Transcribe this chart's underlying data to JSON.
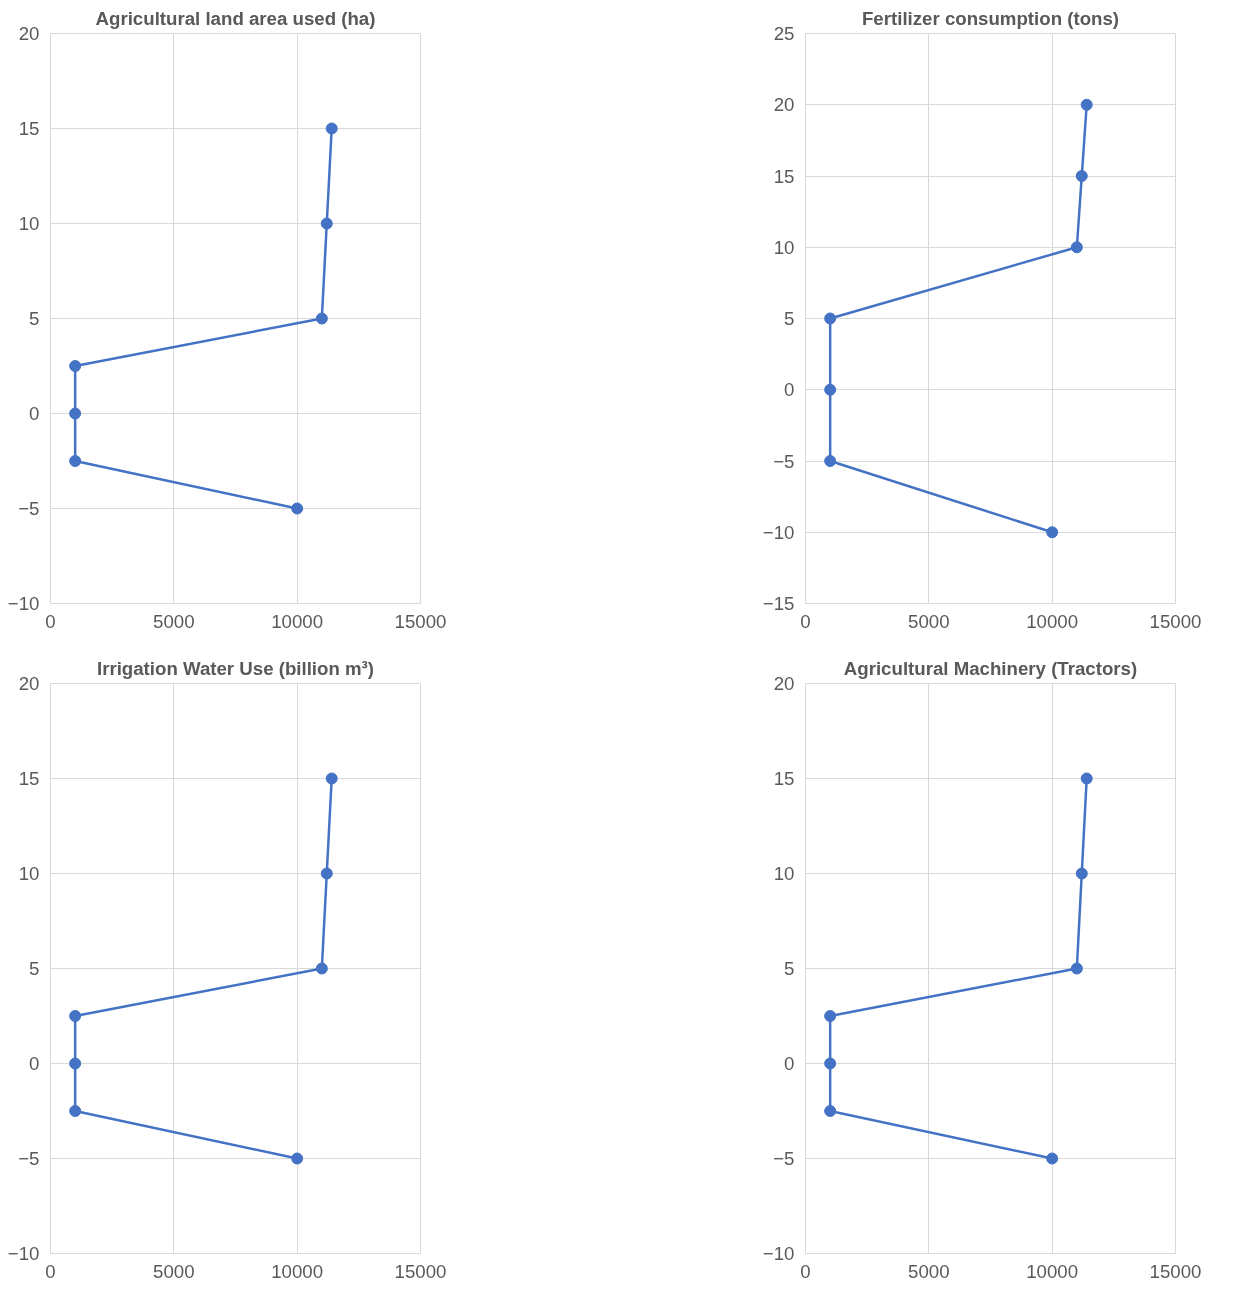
{
  "chart_data": [
    {
      "type": "line",
      "title": "Agricultural land area used (ha)",
      "xlim": [
        0,
        15000
      ],
      "xticks": [
        0,
        5000,
        10000,
        15000
      ],
      "ylim": [
        -10,
        20
      ],
      "yticks": [
        -10,
        -5,
        0,
        5,
        10,
        15,
        20
      ],
      "grid": true,
      "marker": "circle",
      "line_style": "solid",
      "series": [
        {
          "color": "#4472c4",
          "x": [
            11400,
            11200,
            11000,
            1000,
            1000,
            1000,
            10000
          ],
          "values": [
            15,
            10,
            5,
            2.5,
            0,
            -2.5,
            -5
          ]
        }
      ]
    },
    {
      "type": "line",
      "title": "Fertilizer consumption (tons)",
      "xlim": [
        0,
        15000
      ],
      "xticks": [
        0,
        5000,
        10000,
        15000
      ],
      "ylim": [
        -15,
        25
      ],
      "yticks": [
        -15,
        -10,
        -5,
        0,
        5,
        10,
        15,
        20,
        25
      ],
      "grid": true,
      "marker": "circle",
      "line_style": "solid",
      "series": [
        {
          "color": "#4472c4",
          "x": [
            11400,
            11200,
            11000,
            1000,
            1000,
            1000,
            10000
          ],
          "values": [
            20,
            15,
            10,
            5,
            0,
            -5,
            -10
          ]
        }
      ]
    },
    {
      "type": "line",
      "title": "Irrigation Water Use (billion m³)",
      "xlim": [
        0,
        15000
      ],
      "xticks": [
        0,
        5000,
        10000,
        15000
      ],
      "ylim": [
        -10,
        20
      ],
      "yticks": [
        -10,
        -5,
        0,
        5,
        10,
        15,
        20
      ],
      "grid": true,
      "marker": "circle",
      "line_style": "solid",
      "series": [
        {
          "color": "#4472c4",
          "x": [
            11400,
            11200,
            11000,
            1000,
            1000,
            1000,
            10000
          ],
          "values": [
            15,
            10,
            5,
            2.5,
            0,
            -2.5,
            -5
          ]
        }
      ]
    },
    {
      "type": "line",
      "title": "Agricultural Machinery (Tractors)",
      "xlim": [
        0,
        15000
      ],
      "xticks": [
        0,
        5000,
        10000,
        15000
      ],
      "ylim": [
        -10,
        20
      ],
      "yticks": [
        -10,
        -5,
        0,
        5,
        10,
        15,
        20
      ],
      "grid": true,
      "marker": "circle",
      "line_style": "solid",
      "series": [
        {
          "color": "#4472c4",
          "x": [
            11400,
            11200,
            11000,
            1000,
            1000,
            1000,
            10000
          ],
          "values": [
            15,
            10,
            5,
            2.5,
            0,
            -2.5,
            -5
          ]
        }
      ]
    }
  ]
}
